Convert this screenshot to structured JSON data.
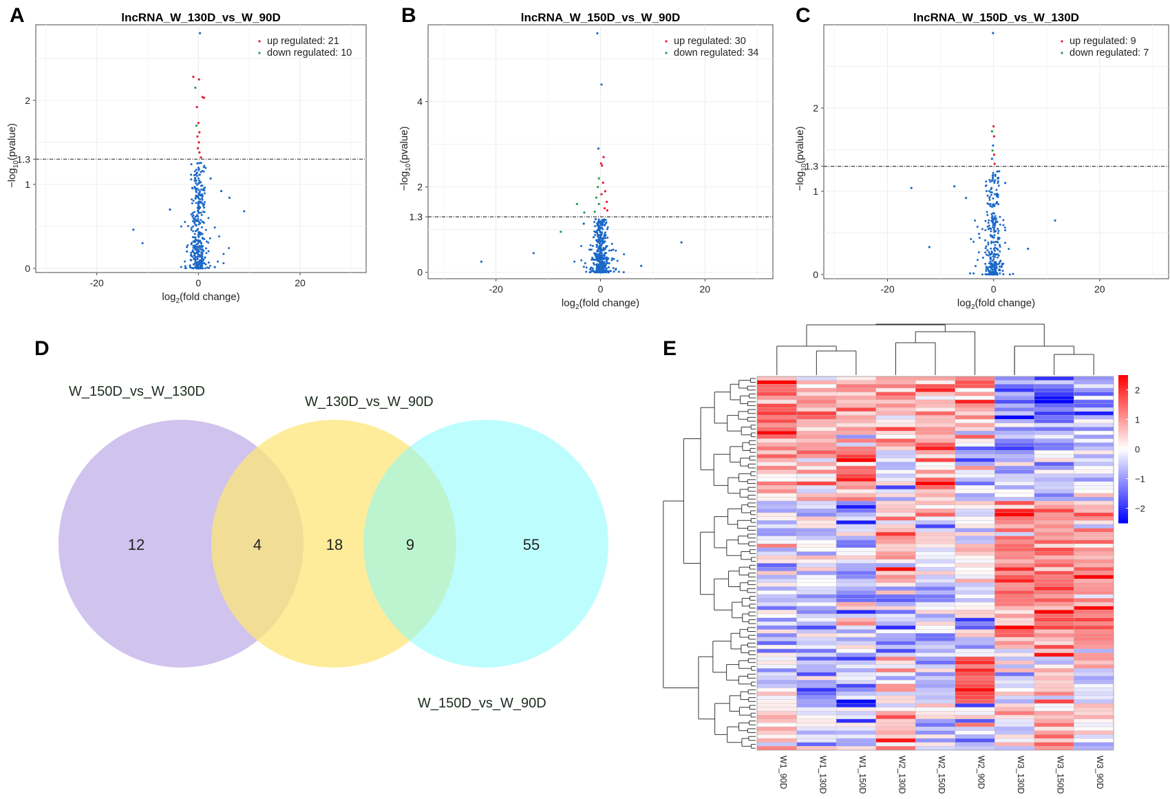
{
  "panel_labels": [
    "A",
    "B",
    "C",
    "D",
    "E"
  ],
  "colors": {
    "up": "#e8152e",
    "down": "#1f9e4a",
    "ns": "#1a68c8",
    "venn_a": "#cbbdec",
    "venn_b": "#fde678",
    "venn_c": "#86fbfd"
  },
  "chart_data": [
    {
      "id": "A",
      "type": "scatter",
      "title": "lncRNA_W_130D_vs_W_90D",
      "xlabel": "log2(fold change)",
      "ylabel": "-log10(pvalue)",
      "xlim": [
        -32,
        33
      ],
      "ylim": [
        -0.05,
        2.9
      ],
      "xticks": [
        "-20",
        "0",
        "20"
      ],
      "yticks": [
        "0",
        "1",
        "1.3",
        "2"
      ],
      "threshold": 1.3,
      "legend": {
        "up": "up regulated: 21",
        "down": "down regulated: 10"
      },
      "points": [
        [
          0.3,
          2.8
        ],
        [
          -1,
          2.28
        ],
        [
          0.1,
          2.25
        ],
        [
          -0.6,
          2.15
        ],
        [
          0.8,
          2.04
        ],
        [
          1.1,
          2.03
        ],
        [
          -0.3,
          1.92
        ],
        [
          0,
          1.73
        ],
        [
          -0.4,
          1.7
        ],
        [
          0.2,
          1.62
        ],
        [
          -0.2,
          1.57
        ],
        [
          0.1,
          1.5
        ],
        [
          -0.1,
          1.43
        ],
        [
          0.2,
          1.38
        ],
        [
          0.5,
          1.32
        ],
        [
          -5.6,
          0.7
        ],
        [
          -12.8,
          0.46
        ],
        [
          9,
          0.68
        ],
        [
          4.5,
          0.92
        ],
        [
          6.1,
          0.84
        ],
        [
          -11,
          0.3
        ],
        [
          2.4,
          1.07
        ]
      ],
      "up_idx": [
        1,
        2,
        4,
        5,
        6,
        7,
        9,
        10,
        11,
        12,
        13,
        14
      ],
      "down_idx": [
        3,
        8
      ],
      "cloud": {
        "n": 380,
        "xscale": 1.0,
        "ymax": 1.26
      }
    },
    {
      "id": "B",
      "type": "scatter",
      "title": "lncRNA_W_150D_vs_W_90D",
      "xlabel": "log2(fold change)",
      "ylabel": "-log10(pvalue)",
      "xlim": [
        -33,
        33
      ],
      "ylim": [
        -0.15,
        5.8
      ],
      "xticks": [
        "-20",
        "0",
        "20"
      ],
      "yticks": [
        "0",
        "1.3",
        "2",
        "4"
      ],
      "threshold": 1.3,
      "legend": {
        "up": "up regulated: 30",
        "down": "down regulated: 34"
      },
      "points": [
        [
          -0.6,
          5.6
        ],
        [
          0.2,
          4.4
        ],
        [
          -0.4,
          2.9
        ],
        [
          0.6,
          2.7
        ],
        [
          0.1,
          2.55
        ],
        [
          0.3,
          2.5
        ],
        [
          -0.3,
          2.2
        ],
        [
          0.5,
          2.1
        ],
        [
          -0.5,
          2.0
        ],
        [
          0.9,
          1.9
        ],
        [
          0.2,
          1.83
        ],
        [
          -0.8,
          1.75
        ],
        [
          1.2,
          1.65
        ],
        [
          -0.3,
          1.6
        ],
        [
          0.8,
          1.5
        ],
        [
          1.3,
          1.45
        ],
        [
          -1.1,
          1.42
        ],
        [
          -4.5,
          1.6
        ],
        [
          -3.1,
          1.4
        ],
        [
          -7.6,
          0.95
        ],
        [
          -12.8,
          0.45
        ],
        [
          -22.8,
          0.25
        ],
        [
          15.5,
          0.7
        ],
        [
          7.8,
          0.15
        ],
        [
          -3.2,
          1.14
        ]
      ],
      "up_idx": [
        3,
        4,
        5,
        7,
        9,
        12,
        14,
        15,
        10
      ],
      "down_idx": [
        6,
        8,
        11,
        13,
        16,
        17,
        18,
        19
      ],
      "cloud": {
        "n": 420,
        "xscale": 1.0,
        "ymax": 1.25
      }
    },
    {
      "id": "C",
      "type": "scatter",
      "title": "lncRNA_W_150D_vs_W_130D",
      "xlabel": "log2(fold change)",
      "ylabel": "-log10(pvalue)",
      "xlim": [
        -32,
        33
      ],
      "ylim": [
        -0.05,
        3.0
      ],
      "xticks": [
        "-20",
        "0",
        "20"
      ],
      "yticks": [
        "0",
        "1",
        "1.3",
        "2"
      ],
      "threshold": 1.3,
      "legend": {
        "up": "up regulated: 9",
        "down": "down regulated: 7"
      },
      "points": [
        [
          -0.1,
          2.9
        ],
        [
          0,
          1.78
        ],
        [
          -0.3,
          1.72
        ],
        [
          0.1,
          1.66
        ],
        [
          -0.1,
          1.55
        ],
        [
          -0.2,
          1.49
        ],
        [
          0.1,
          1.44
        ],
        [
          -0.3,
          1.39
        ],
        [
          0.2,
          1.33
        ],
        [
          -15.5,
          1.04
        ],
        [
          -7.4,
          1.06
        ],
        [
          -5.2,
          0.92
        ],
        [
          11.6,
          0.65
        ],
        [
          -12.1,
          0.33
        ],
        [
          6.5,
          0.31
        ],
        [
          2.2,
          1.1
        ]
      ],
      "up_idx": [
        1,
        3,
        6,
        8
      ],
      "down_idx": [
        2,
        5
      ],
      "cloud": {
        "n": 300,
        "xscale": 1.0,
        "ymax": 1.25
      }
    },
    {
      "id": "D",
      "type": "venn",
      "sets": [
        "W_150D_vs_W_130D",
        "W_130D_vs_W_90D",
        "W_150D_vs_W_90D"
      ],
      "regions": {
        "only_a": "12",
        "a_b": "4",
        "only_b": "18",
        "b_c": "9",
        "only_c": "55"
      }
    },
    {
      "id": "E",
      "type": "heatmap",
      "columns": [
        "W1_90D",
        "W1_130D",
        "W1_150D",
        "W2_130D",
        "W2_150D",
        "W2_90D",
        "W3_130D",
        "W3_150D",
        "W3_90D"
      ],
      "n_rows": 96,
      "colorbar": {
        "min": -2.5,
        "max": 2.5,
        "ticks": [
          "2",
          "1",
          "0",
          "−1",
          "−2"
        ]
      },
      "column_clusters": [
        [
          0,
          1,
          2,
          3,
          4,
          5
        ],
        [
          6,
          7,
          8
        ]
      ],
      "row_blocks": [
        {
          "rows": 18,
          "means": [
            1.2,
            1.0,
            0.5,
            0.6,
            0.9,
            0.6,
            -0.9,
            -1.2,
            -0.8
          ]
        },
        {
          "rows": 14,
          "means": [
            0.6,
            0.3,
            1.1,
            -0.3,
            0.9,
            -0.7,
            -0.6,
            -0.5,
            -0.4
          ]
        },
        {
          "rows": 22,
          "means": [
            -0.6,
            -0.5,
            -0.6,
            0.5,
            -0.2,
            0.3,
            1.2,
            1.1,
            1.0
          ]
        },
        {
          "rows": 18,
          "means": [
            -0.6,
            -0.4,
            -0.5,
            -0.8,
            -0.6,
            -0.5,
            1.2,
            1.3,
            1.2
          ]
        },
        {
          "rows": 12,
          "means": [
            0.0,
            -1.0,
            -0.9,
            0.1,
            -0.6,
            2.2,
            -0.3,
            0.4,
            -0.2
          ]
        },
        {
          "rows": 12,
          "means": [
            0.4,
            -0.3,
            -0.5,
            0.5,
            -0.4,
            -0.5,
            -0.1,
            0.2,
            -0.2
          ]
        }
      ]
    }
  ]
}
